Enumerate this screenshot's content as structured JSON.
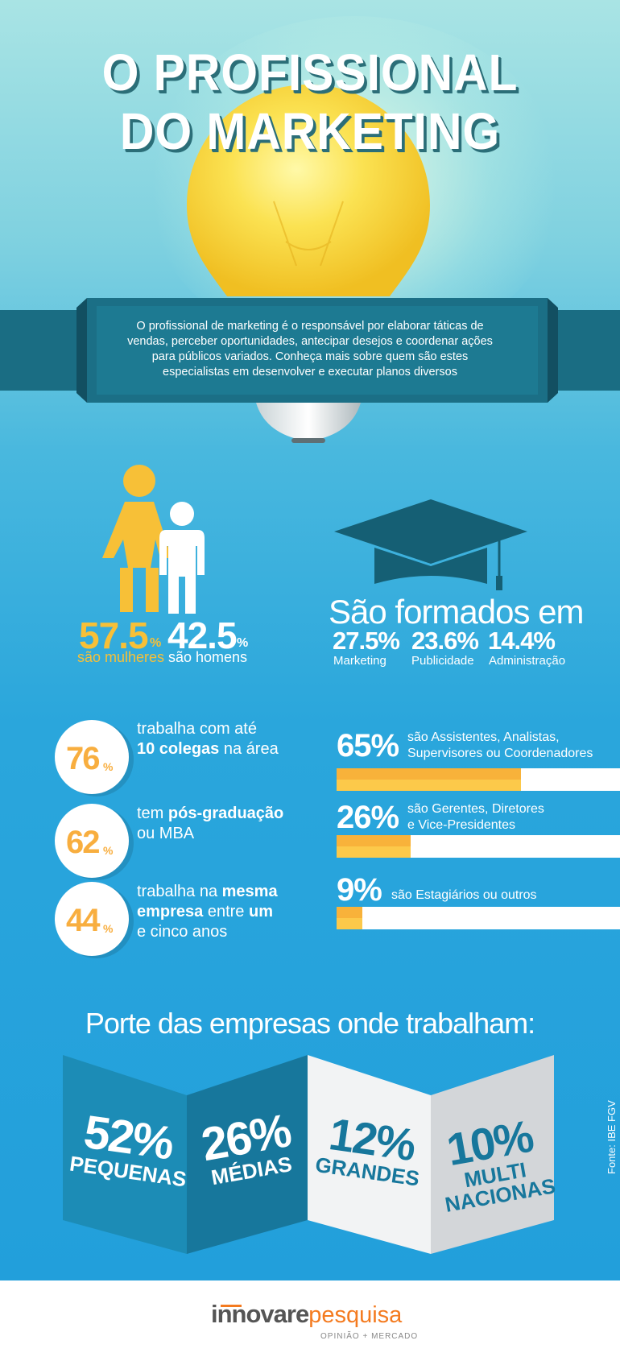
{
  "title": {
    "line1": "O PROFISSIONAL",
    "line2": "DO MARKETING"
  },
  "intro": "O profissional de marketing é o responsável por elaborar táticas de vendas, perceber oportunidades, antecipar desejos e coordenar ações para públicos variados. Conheça mais sobre quem são estes especialistas em desenvolver e executar planos diversos",
  "gender": {
    "women": {
      "value": "57.5",
      "unit": "%",
      "label": "são mulheres"
    },
    "men": {
      "value": "42.5",
      "unit": "%",
      "label": "são homens"
    }
  },
  "education": {
    "heading": "São formados em",
    "items": [
      {
        "value": "27.5%",
        "label": "Marketing"
      },
      {
        "value": "23.6%",
        "label": "Publicidade"
      },
      {
        "value": "14.4%",
        "label": "Administração"
      }
    ]
  },
  "circles": [
    {
      "value": "76",
      "unit": "%",
      "t1": "trabalha com até",
      "t2a": "10 colegas",
      "t2b": " na área",
      "t3": ""
    },
    {
      "value": "62",
      "unit": "%",
      "t1a": "tem ",
      "t1b": "pós-graduação",
      "t2": "ou MBA"
    },
    {
      "value": "44",
      "unit": "%",
      "t1a": "trabalha na ",
      "t1b": "mesma",
      "t2a": "empresa",
      "t2b": " entre ",
      "t2c": "um",
      "t3": "e cinco anos"
    }
  ],
  "positions": [
    {
      "pct": "65%",
      "fill": 0.65,
      "l1": "são Assistentes, Analistas,",
      "l2": "Supervisores ou Coordenadores"
    },
    {
      "pct": "26%",
      "fill": 0.26,
      "l1": "são Gerentes, Diretores",
      "l2": "e Vice-Presidentes"
    },
    {
      "pct": "9%",
      "fill": 0.09,
      "l1": "são Estagiários ou outros",
      "l2": ""
    }
  ],
  "companies": {
    "heading": "Porte das empresas onde trabalham:",
    "items": [
      {
        "value": "52%",
        "label": "PEQUENAS"
      },
      {
        "value": "26%",
        "label": "MÉDIAS"
      },
      {
        "value": "12%",
        "label": "GRANDES"
      },
      {
        "value": "10%",
        "label": "MULTI NACIONAS",
        "l1": "MULTI",
        "l2": "NACIONAS"
      }
    ],
    "source": "Fonte: IBE FGV"
  },
  "brand": {
    "part1": "innovare",
    "part2": "pesquisa",
    "tagline": "OPINIÃO + MERCADO"
  },
  "colors": {
    "teal_dark": "#13657a",
    "accent": "#f8ae3f",
    "yellow": "#f7c037",
    "sky": "#229fdb"
  }
}
